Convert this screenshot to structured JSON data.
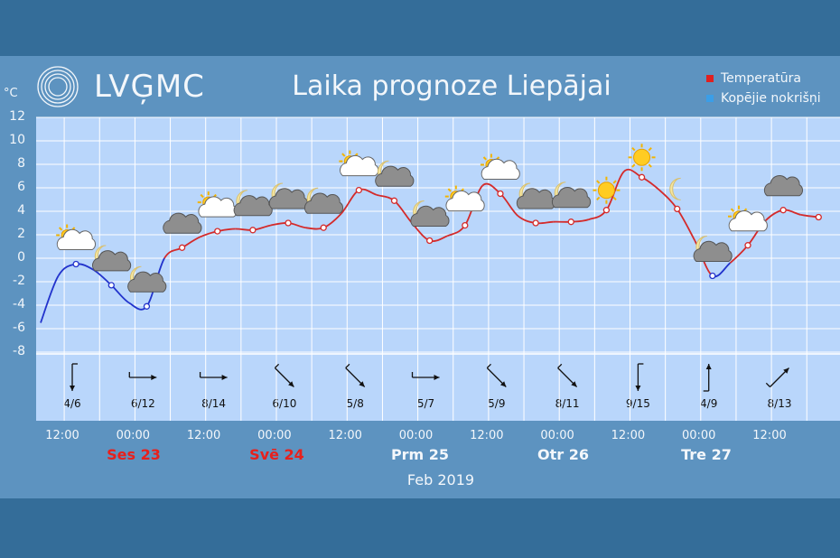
{
  "header": {
    "logo_text": "LVĢMC",
    "title": "Laika prognoze Liepājai",
    "unit": "°C"
  },
  "legend": [
    {
      "label": "Temperatūra",
      "color": "#e02020"
    },
    {
      "label": "Kopējie nokrišņi",
      "color": "#3a9ee8"
    }
  ],
  "colors": {
    "warm": "#d42a2a",
    "cold": "#2233cc",
    "plot_bg": "#b9d6fb"
  },
  "y_ticks": [
    "12",
    "10",
    "8",
    "6",
    "4",
    "2",
    "0",
    "-2",
    "-4",
    "-6",
    "-8"
  ],
  "time_labels": [
    "12:00",
    "00:00",
    "12:00",
    "00:00",
    "12:00",
    "00:00",
    "12:00",
    "00:00",
    "12:00",
    "00:00",
    "12:00"
  ],
  "days": [
    {
      "label": "Ses 23",
      "color": "#e8201c"
    },
    {
      "label": "Svē 24",
      "color": "#e8201c"
    },
    {
      "label": "Prm 25",
      "color": "#f3f7fb"
    },
    {
      "label": "Otr 26",
      "color": "#f3f7fb"
    },
    {
      "label": "Tre 27",
      "color": "#f3f7fb"
    }
  ],
  "month_label": "Feb 2019",
  "wind": [
    {
      "speed": "4/6",
      "dir": "S"
    },
    {
      "speed": "6/12",
      "dir": "E"
    },
    {
      "speed": "8/14",
      "dir": "E"
    },
    {
      "speed": "6/10",
      "dir": "SE"
    },
    {
      "speed": "5/8",
      "dir": "SE"
    },
    {
      "speed": "5/7",
      "dir": "E"
    },
    {
      "speed": "5/9",
      "dir": "SE"
    },
    {
      "speed": "8/11",
      "dir": "SE"
    },
    {
      "speed": "9/15",
      "dir": "S"
    },
    {
      "speed": "4/9",
      "dir": "N"
    },
    {
      "speed": "8/13",
      "dir": "NE"
    }
  ],
  "weather_icons": [
    "partly-cloudy",
    "cloudy-night",
    "cloudy-night",
    "cloudy",
    "partly-cloudy",
    "cloudy-night",
    "cloudy-night",
    "cloudy-night",
    "partly-cloudy",
    "cloudy-night",
    "cloudy-night",
    "partly-cloudy",
    "partly-cloudy",
    "cloudy-night",
    "cloudy-night",
    "sun",
    "sun",
    "moon",
    "cloudy-night",
    "partly-cloudy",
    "cloudy"
  ],
  "chart_data": {
    "type": "line",
    "title": "Laika prognoze Liepājai",
    "ylabel": "°C",
    "ylim": [
      -8,
      12
    ],
    "x_unit": "hours from 12:00 Feb 22",
    "series": [
      {
        "name": "Temperatūra",
        "x": [
          0,
          3,
          6,
          9,
          12,
          15,
          18,
          21,
          24,
          27,
          30,
          33,
          36,
          39,
          42,
          45,
          48,
          51,
          54,
          57,
          60,
          63,
          66,
          69,
          72,
          75,
          78,
          81,
          84,
          87,
          90,
          93,
          96,
          99,
          102,
          105,
          108,
          111,
          114,
          117,
          120,
          123,
          126,
          129,
          132
        ],
        "y": [
          -5.5,
          -1.5,
          -0.5,
          -1.0,
          -2.3,
          -3.8,
          -4.1,
          0.0,
          0.9,
          1.8,
          2.3,
          2.5,
          2.4,
          2.8,
          3.0,
          2.6,
          2.6,
          3.8,
          5.8,
          5.4,
          4.9,
          3.0,
          1.5,
          1.9,
          2.8,
          6.2,
          5.5,
          3.6,
          3.0,
          3.1,
          3.1,
          3.3,
          4.1,
          7.4,
          6.9,
          5.8,
          4.2,
          1.5,
          -1.5,
          -0.4,
          1.1,
          3.2,
          4.1,
          3.7,
          3.5
        ]
      }
    ]
  }
}
